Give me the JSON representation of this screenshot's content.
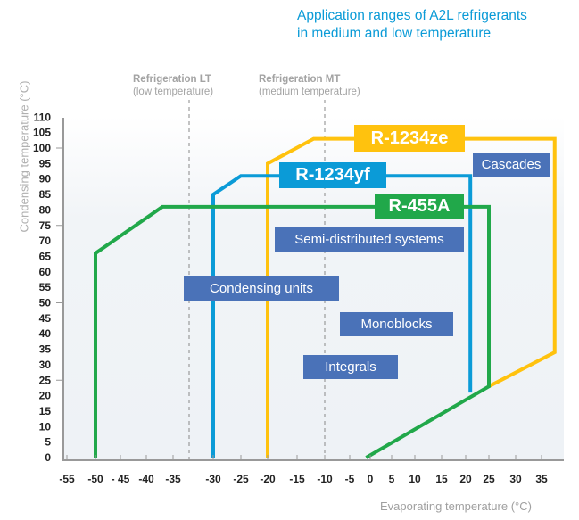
{
  "chart_data": {
    "type": "line",
    "title": "Application ranges of A2L refrigerants in medium and low temperature",
    "title_lines": [
      "Application ranges of A2L refrigerants",
      "in medium and low temperature"
    ],
    "xlabel": "Evaporating temperature (°C)",
    "ylabel": "Condensing temperature (°C)",
    "xlim": [
      -57,
      38
    ],
    "ylim": [
      0,
      110
    ],
    "xticks": [
      -55,
      -50,
      -45,
      -40,
      -35,
      -30,
      -25,
      -20,
      -15,
      -10,
      -5,
      0,
      5,
      10,
      15,
      20,
      25,
      30,
      35
    ],
    "xtick_labels": [
      "-55",
      "-50",
      "- 45",
      "-40",
      "-35",
      "-30",
      "-25",
      "-20",
      "-15",
      "-10",
      "-5",
      "0",
      "5",
      "10",
      "15",
      "20",
      "25",
      "30",
      "35"
    ],
    "yticks": [
      0,
      5,
      10,
      15,
      20,
      25,
      30,
      35,
      40,
      45,
      50,
      55,
      60,
      65,
      70,
      75,
      80,
      85,
      90,
      95,
      100,
      105,
      110
    ],
    "series": [
      {
        "name": "R-1234ze",
        "color": "#ffc20e",
        "points": [
          [
            -20,
            0
          ],
          [
            -20,
            95
          ],
          [
            -12,
            103
          ],
          [
            37.5,
            103
          ],
          [
            37.5,
            34
          ],
          [
            25,
            23
          ]
        ]
      },
      {
        "name": "R-1234yf",
        "color": "#0b9bd7",
        "points": [
          [
            -30,
            0
          ],
          [
            -30,
            85
          ],
          [
            -25,
            91
          ],
          [
            21,
            91
          ],
          [
            21,
            21
          ]
        ]
      },
      {
        "name": "R-455A",
        "color": "#21a84a",
        "points": [
          [
            -50,
            0
          ],
          [
            -50,
            66
          ],
          [
            -37,
            81
          ],
          [
            25,
            81
          ],
          [
            25,
            23
          ],
          [
            -1,
            0
          ]
        ]
      }
    ],
    "regions": [
      {
        "label": "Refrigeration LT",
        "sub": "(low temperature)",
        "x": -33
      },
      {
        "label": "Refrigeration MT",
        "sub": "(medium temperature)",
        "x": -10
      }
    ],
    "applications": [
      "Cascades",
      "Semi-distributed systems",
      "Condensing units",
      "Monoblocks",
      "Integrals"
    ]
  }
}
